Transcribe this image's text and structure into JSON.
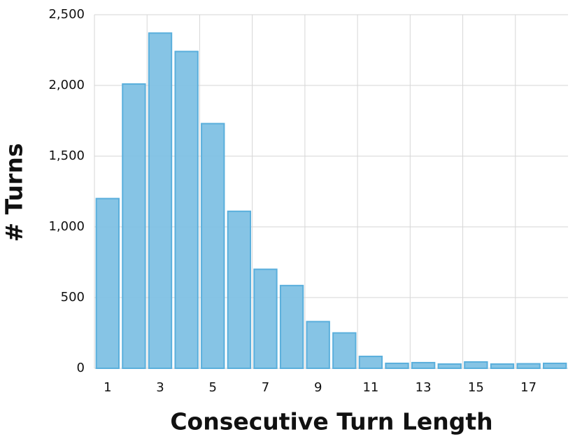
{
  "chart_data": {
    "type": "bar",
    "x_label": "Consecutive Turn Length",
    "y_label": "# Turns",
    "categories": [
      "1",
      null,
      "3",
      null,
      "5",
      null,
      "7",
      null,
      "9",
      null,
      "11",
      null,
      "13",
      null,
      "15",
      null,
      "17",
      null
    ],
    "values": [
      1200,
      2010,
      2370,
      2240,
      1730,
      1110,
      700,
      585,
      330,
      250,
      84,
      35,
      40,
      30,
      45,
      30,
      32,
      35
    ],
    "color": "#80c1e4",
    "ylim": [
      0,
      2500
    ],
    "yticks": [
      0,
      500,
      {
        "value": 1000,
        "label": "1,000"
      },
      {
        "value": 1500,
        "label": "1,500"
      },
      {
        "value": 2000,
        "label": "2,000"
      },
      {
        "value": 2500,
        "label": "2,500"
      }
    ],
    "grid": true
  }
}
